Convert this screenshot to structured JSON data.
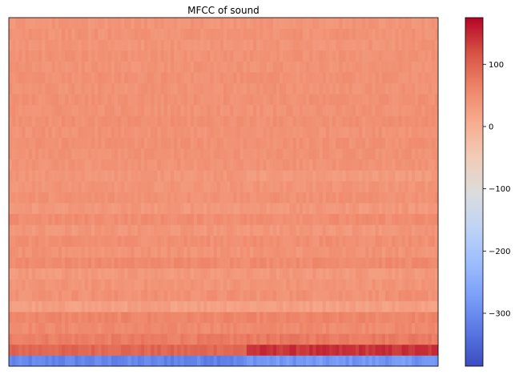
{
  "chart_data": {
    "type": "heatmap",
    "title": "MFCC of sound",
    "xlabel": "",
    "ylabel": "",
    "rows": 32,
    "frames": 130,
    "value_range": [
      -385,
      175
    ],
    "colormap": "coolwarm",
    "colormap_stops": [
      "#3b4cc0",
      "#5977e3",
      "#7b9ff9",
      "#9ebeff",
      "#c0d4f5",
      "#dddcdc",
      "#f2cbb7",
      "#f7ac8e",
      "#ee8468",
      "#d65244",
      "#b40426"
    ],
    "row_profiles_bottom_to_top": [
      {
        "row": 0,
        "base": -310,
        "jitter": 18,
        "late_shift": 25
      },
      {
        "row": 1,
        "base": 95,
        "jitter": 12,
        "late_shift": 45
      },
      {
        "row": 2,
        "base": 70,
        "jitter": 10,
        "late_shift": 5
      },
      {
        "row": 3,
        "base": 55,
        "jitter": 10,
        "late_shift": 0
      },
      {
        "row": 4,
        "base": 60,
        "jitter": 9,
        "late_shift": 0
      },
      {
        "row": 5,
        "base": 25,
        "jitter": 10,
        "late_shift": 0
      },
      {
        "row": 6,
        "base": 45,
        "jitter": 10,
        "late_shift": 0
      },
      {
        "row": 7,
        "base": 40,
        "jitter": 9,
        "late_shift": 0
      },
      {
        "row": 8,
        "base": 35,
        "jitter": 9,
        "late_shift": 0
      },
      {
        "row": 9,
        "base": 55,
        "jitter": 9,
        "late_shift": 0
      },
      {
        "row": 10,
        "base": 42,
        "jitter": 9,
        "late_shift": 0
      },
      {
        "row": 11,
        "base": 48,
        "jitter": 9,
        "late_shift": 0
      },
      {
        "row": 12,
        "base": 38,
        "jitter": 9,
        "late_shift": 0
      },
      {
        "row": 13,
        "base": 50,
        "jitter": 9,
        "late_shift": 0
      },
      {
        "row": 14,
        "base": 36,
        "jitter": 9,
        "late_shift": 0
      },
      {
        "row": 15,
        "base": 45,
        "jitter": 8,
        "late_shift": 0
      },
      {
        "row": 16,
        "base": 40,
        "jitter": 8,
        "late_shift": 0
      },
      {
        "row": 17,
        "base": 38,
        "jitter": 8,
        "late_shift": -6
      },
      {
        "row": 18,
        "base": 42,
        "jitter": 8,
        "late_shift": 0
      },
      {
        "row": 19,
        "base": 44,
        "jitter": 8,
        "late_shift": 0
      },
      {
        "row": 20,
        "base": 46,
        "jitter": 8,
        "late_shift": 0
      },
      {
        "row": 21,
        "base": 43,
        "jitter": 8,
        "late_shift": 0
      },
      {
        "row": 22,
        "base": 47,
        "jitter": 8,
        "late_shift": 0
      },
      {
        "row": 23,
        "base": 44,
        "jitter": 8,
        "late_shift": 0
      },
      {
        "row": 24,
        "base": 46,
        "jitter": 8,
        "late_shift": 0
      },
      {
        "row": 25,
        "base": 43,
        "jitter": 8,
        "late_shift": 0
      },
      {
        "row": 26,
        "base": 45,
        "jitter": 8,
        "late_shift": 0
      },
      {
        "row": 27,
        "base": 42,
        "jitter": 8,
        "late_shift": 0
      },
      {
        "row": 28,
        "base": 44,
        "jitter": 8,
        "late_shift": 0
      },
      {
        "row": 29,
        "base": 41,
        "jitter": 8,
        "late_shift": 0
      },
      {
        "row": 30,
        "base": 43,
        "jitter": 8,
        "late_shift": 0
      },
      {
        "row": 31,
        "base": 40,
        "jitter": 8,
        "late_shift": 0
      }
    ],
    "colorbar": {
      "ticks": [
        100,
        0,
        -100,
        -200,
        -300
      ],
      "tick_labels": [
        "100",
        "0",
        "−100",
        "−200",
        "−300"
      ]
    }
  }
}
